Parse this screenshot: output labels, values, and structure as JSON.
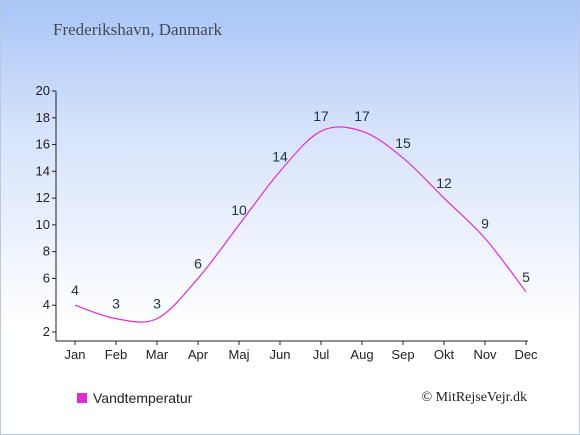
{
  "chart_data": {
    "type": "line",
    "title": "Frederikshavn, Danmark",
    "categories": [
      "Jan",
      "Feb",
      "Mar",
      "Apr",
      "Maj",
      "Jun",
      "Jul",
      "Aug",
      "Sep",
      "Okt",
      "Nov",
      "Dec"
    ],
    "series": [
      {
        "name": "Vandtemperatur",
        "values": [
          4,
          3,
          3,
          6,
          10,
          14,
          17,
          17,
          15,
          12,
          9,
          5
        ]
      }
    ],
    "ylim": [
      2,
      20
    ],
    "yticks": [
      2,
      4,
      6,
      8,
      10,
      12,
      14,
      16,
      18,
      20
    ],
    "grid": false,
    "legend_position": "bottom-left"
  },
  "colors": {
    "series": "#e02bd4",
    "axis": "#222222"
  },
  "copyright": "© MitRejseVejr.dk"
}
